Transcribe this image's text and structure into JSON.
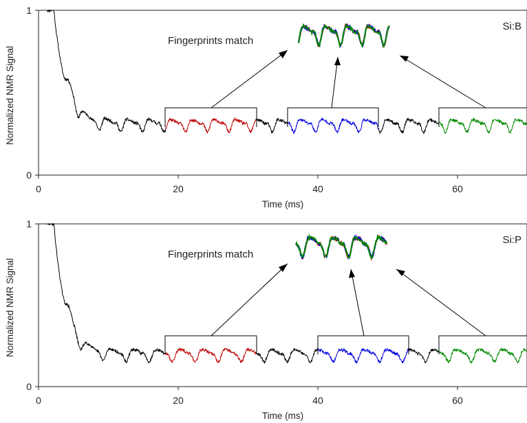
{
  "chart_data": [
    {
      "type": "line",
      "panel_label": "Si:B",
      "xlabel": "Time (ms)",
      "ylabel": "Normalized NMR Signal",
      "xlim": [
        0,
        70
      ],
      "ylim": [
        0,
        1
      ],
      "xticks": [
        "0",
        "20",
        "40",
        "60"
      ],
      "yticks": [
        "0",
        "1"
      ],
      "grid": false,
      "annotation": "Fingerprints match",
      "decay": {
        "tau_ms": 1.6,
        "plateau": 0.31,
        "initial": 1.0
      },
      "oscillation_period_ms": 3.1,
      "series": [
        {
          "color": "#000000",
          "role": "full trace",
          "x_range": [
            1.2,
            70
          ]
        },
        {
          "color": "#c00000",
          "role": "segment 1",
          "x_range": [
            18.2,
            31.2
          ]
        },
        {
          "color": "#0000e0",
          "role": "segment 2",
          "x_range": [
            35.7,
            48.7
          ]
        },
        {
          "color": "#008a00",
          "role": "segment 3",
          "x_range": [
            57.2,
            70
          ]
        }
      ]
    },
    {
      "type": "line",
      "panel_label": "Si:P",
      "xlabel": "Time (ms)",
      "ylabel": "Normalized NMR Signal",
      "xlim": [
        0,
        70
      ],
      "ylim": [
        0,
        1
      ],
      "xticks": [
        "0",
        "20",
        "40",
        "60"
      ],
      "yticks": [
        "0",
        "1"
      ],
      "grid": false,
      "annotation": "Fingerprints match",
      "decay": {
        "tau_ms": 1.6,
        "plateau": 0.2,
        "initial": 1.0
      },
      "oscillation_period_ms": 3.3,
      "series": [
        {
          "color": "#000000",
          "role": "full trace",
          "x_range": [
            1.2,
            70
          ]
        },
        {
          "color": "#c00000",
          "role": "segment 1",
          "x_range": [
            18.2,
            31.2
          ]
        },
        {
          "color": "#0000e0",
          "role": "segment 2",
          "x_range": [
            40.0,
            53.0
          ]
        },
        {
          "color": "#008a00",
          "role": "segment 3",
          "x_range": [
            57.2,
            70
          ]
        }
      ]
    }
  ]
}
